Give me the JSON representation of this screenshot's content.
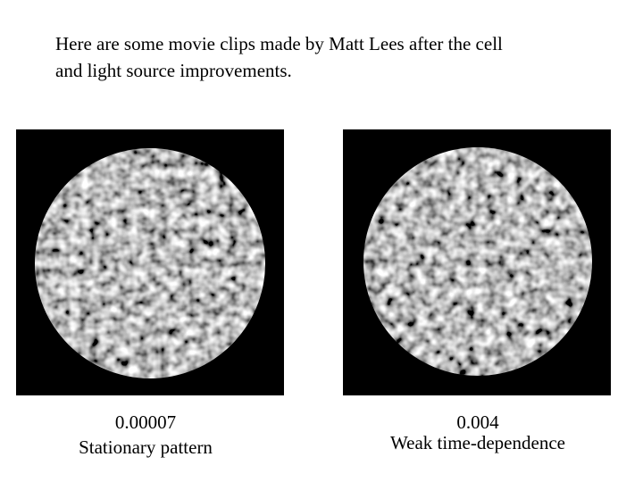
{
  "intro": {
    "lines": [
      "Here are some movie clips made by Matt Lees after the cell",
      "and light source improvements."
    ]
  },
  "panels": [
    {
      "value": "0.00007",
      "caption": "Stationary pattern"
    },
    {
      "value": "0.004",
      "caption": "Weak time-dependence"
    }
  ]
}
